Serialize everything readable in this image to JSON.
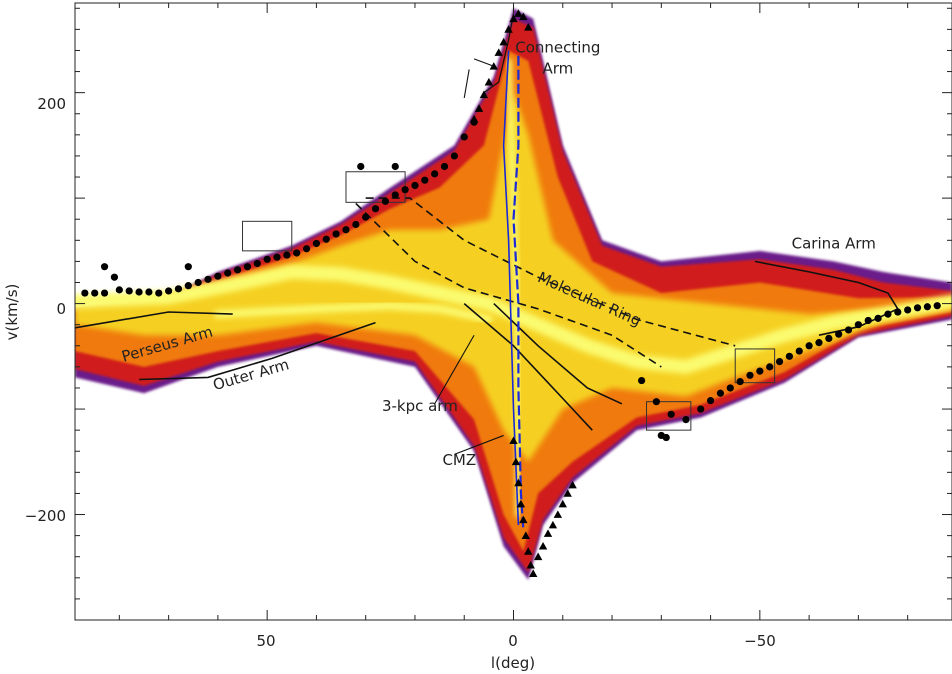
{
  "chart_data": {
    "type": "scatter",
    "subtype": "longitude-velocity diagram",
    "xlabel": "l(deg)",
    "ylabel": "v(km/s)",
    "xlim": [
      89,
      -89
    ],
    "ylim": [
      -300,
      285
    ],
    "x_ticks": [
      50,
      0,
      -50
    ],
    "x_tick_labels": [
      "50",
      "0",
      "−50"
    ],
    "y_ticks": [
      200,
      0,
      -200
    ],
    "y_tick_labels": [
      "200",
      "0",
      "−200"
    ],
    "grid": false,
    "legend": "none",
    "colors": {
      "emission_low": "#6a1b8a",
      "emission_mid1": "#d01c1c",
      "emission_mid2": "#f07a10",
      "emission_high": "#f5d020",
      "emission_peak": "#fbfb70",
      "terminal_curve": "#1a2ad8",
      "markers": "#000000"
    },
    "annotations": [
      {
        "text": "Connecting",
        "x": -9,
        "y": 238
      },
      {
        "text": "Arm",
        "x": -9,
        "y": 218
      },
      {
        "text": "Carina Arm",
        "x": -65,
        "y": 52
      },
      {
        "text": "Molecular Ring",
        "x": -15,
        "y": 0,
        "rotate": 24
      },
      {
        "text": "Perseus Arm",
        "x": 70,
        "y": -43,
        "rotate": -16
      },
      {
        "text": "Outer Arm",
        "x": 53,
        "y": -72,
        "rotate": -16
      },
      {
        "text": "3-kpc arm",
        "x": 19,
        "y": -102
      },
      {
        "text": "CMZ",
        "x": 11,
        "y": -153
      }
    ],
    "series": [
      {
        "marker": "circle",
        "points": [
          [
            87,
            10
          ],
          [
            85,
            10
          ],
          [
            83,
            10
          ],
          [
            80,
            13
          ],
          [
            78,
            12
          ],
          [
            76,
            11
          ],
          [
            74,
            11
          ],
          [
            72,
            10
          ],
          [
            70,
            12
          ],
          [
            68,
            14
          ],
          [
            66,
            17
          ],
          [
            64,
            20
          ],
          [
            62,
            23
          ],
          [
            60,
            26
          ],
          [
            58,
            29
          ],
          [
            56,
            32
          ],
          [
            54,
            35
          ],
          [
            52,
            38
          ],
          [
            50,
            42
          ],
          [
            48,
            44
          ],
          [
            46,
            46
          ],
          [
            44,
            48
          ],
          [
            42,
            52
          ],
          [
            40,
            57
          ],
          [
            38,
            61
          ],
          [
            36,
            66
          ],
          [
            34,
            70
          ],
          [
            32,
            75
          ],
          [
            30,
            82
          ],
          [
            28,
            90
          ],
          [
            26,
            97
          ],
          [
            24,
            103
          ],
          [
            22,
            108
          ],
          [
            20,
            112
          ],
          [
            18,
            117
          ],
          [
            16,
            123
          ],
          [
            14,
            130
          ],
          [
            12,
            140
          ],
          [
            10,
            158
          ],
          [
            8,
            172
          ],
          [
            83,
            35
          ],
          [
            81,
            25
          ],
          [
            66,
            35
          ],
          [
            31,
            130
          ],
          [
            24,
            130
          ],
          [
            -26,
            -73
          ],
          [
            -29,
            -93
          ],
          [
            -32,
            -105
          ],
          [
            -35,
            -110
          ],
          [
            -38,
            -100
          ],
          [
            -40,
            -92
          ],
          [
            -42,
            -85
          ],
          [
            -44,
            -80
          ],
          [
            -46,
            -74
          ],
          [
            -48,
            -68
          ],
          [
            -50,
            -64
          ],
          [
            -52,
            -60
          ],
          [
            -54,
            -55
          ],
          [
            -56,
            -50
          ],
          [
            -58,
            -45
          ],
          [
            -60,
            -40
          ],
          [
            -62,
            -37
          ],
          [
            -64,
            -33
          ],
          [
            -66,
            -29
          ],
          [
            -68,
            -25
          ],
          [
            -70,
            -20
          ],
          [
            -72,
            -16
          ],
          [
            -74,
            -14
          ],
          [
            -76,
            -10
          ],
          [
            -78,
            -8
          ],
          [
            -80,
            -6
          ],
          [
            -82,
            -4
          ],
          [
            -84,
            -3
          ],
          [
            -86,
            -2
          ],
          [
            -30,
            -125
          ],
          [
            -31,
            -127
          ]
        ]
      },
      {
        "marker": "triangle",
        "points": [
          [
            8,
            175
          ],
          [
            7,
            185
          ],
          [
            6,
            198
          ],
          [
            5,
            210
          ],
          [
            4,
            225
          ],
          [
            3,
            238
          ],
          [
            2,
            248
          ],
          [
            1,
            260
          ],
          [
            0,
            270
          ],
          [
            -1,
            275
          ],
          [
            -2,
            272
          ],
          [
            -3,
            262
          ],
          [
            0,
            -130
          ],
          [
            -0.5,
            -150
          ],
          [
            -1,
            -170
          ],
          [
            -1.5,
            -190
          ],
          [
            -2,
            -205
          ],
          [
            -2.5,
            -220
          ],
          [
            -3,
            -235
          ],
          [
            -3.5,
            -248
          ],
          [
            -4,
            -256
          ],
          [
            -5,
            -240
          ],
          [
            -6,
            -230
          ],
          [
            -7,
            -218
          ],
          [
            -8,
            -210
          ],
          [
            -9,
            -200
          ],
          [
            -10,
            -190
          ],
          [
            -11,
            -180
          ],
          [
            -12,
            -172
          ]
        ]
      }
    ],
    "boxes": [
      {
        "x": [
          55,
          45
        ],
        "y": [
          50,
          78
        ]
      },
      {
        "x": [
          34,
          22
        ],
        "y": [
          96,
          125
        ]
      },
      {
        "x": [
          -27,
          -36
        ],
        "y": [
          -93,
          -120
        ]
      },
      {
        "x": [
          -45,
          -53
        ],
        "y": [
          -43,
          -75
        ]
      }
    ]
  }
}
